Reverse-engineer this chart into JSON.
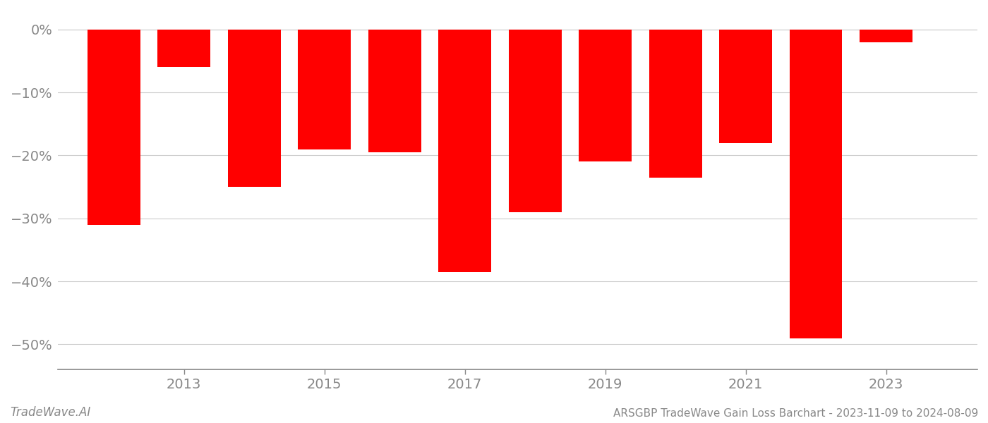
{
  "years": [
    2012,
    2013,
    2014,
    2015,
    2016,
    2017,
    2018,
    2019,
    2020,
    2021,
    2022,
    2023
  ],
  "values": [
    -31.0,
    -6.0,
    -25.0,
    -19.0,
    -19.5,
    -38.5,
    -29.0,
    -21.0,
    -23.5,
    -18.0,
    -49.0,
    -2.0
  ],
  "bar_color": "#ff0000",
  "background_color": "#ffffff",
  "grid_color": "#cccccc",
  "axis_color": "#888888",
  "tick_color": "#888888",
  "ylabel_ticks": [
    0,
    -10,
    -20,
    -30,
    -40,
    -50
  ],
  "ylim": [
    -54,
    3
  ],
  "xlim": [
    2011.2,
    2024.3
  ],
  "footer_left": "TradeWave.AI",
  "footer_right": "ARSGBP TradeWave Gain Loss Barchart - 2023-11-09 to 2024-08-09",
  "bar_width": 0.75,
  "figsize": [
    14.0,
    6.0
  ],
  "dpi": 100
}
